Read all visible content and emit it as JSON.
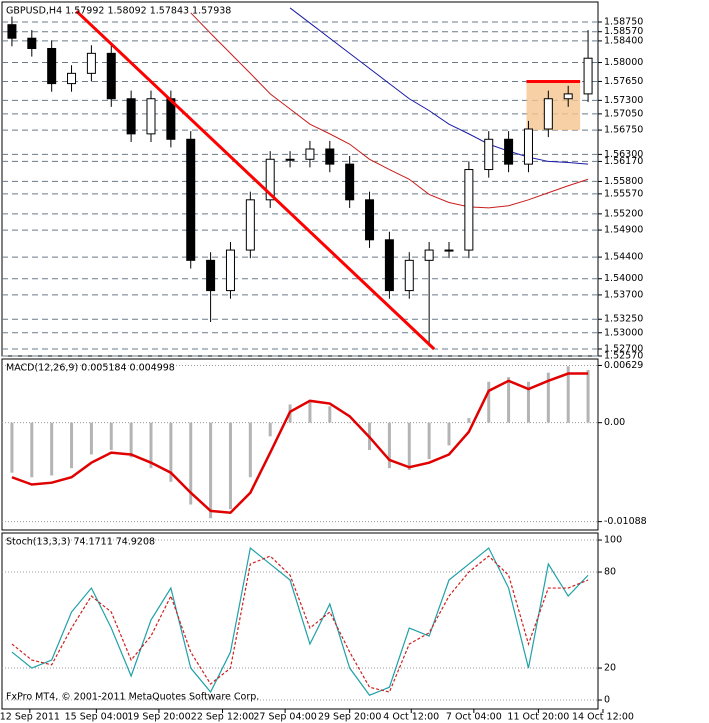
{
  "chart_data": [
    {
      "type": "candlestick",
      "title": "GBPUSD,H4  1.57992 1.58092 1.57843 1.57938",
      "xlim": [
        -0.5,
        29.5
      ],
      "ylim": [
        1.5257,
        1.5912
      ],
      "grid": true,
      "up_color": "#ffffff",
      "down_color": "#000000",
      "open": [
        1.587,
        1.5845,
        1.5826,
        1.5761,
        1.578,
        1.5817,
        1.5733,
        1.5668,
        1.5733,
        1.5658,
        1.5434,
        1.5378,
        1.5453,
        1.5546,
        1.5621,
        1.5621,
        1.564,
        1.5612,
        1.5546,
        1.5472,
        1.5378,
        1.5434,
        1.5453,
        1.5453,
        1.5602,
        1.5658,
        1.5612,
        1.5677,
        1.5733,
        1.5742
      ],
      "high": [
        1.5885,
        1.586,
        1.5841,
        1.5795,
        1.5832,
        1.5832,
        1.5748,
        1.5748,
        1.5748,
        1.5673,
        1.5449,
        1.5468,
        1.5561,
        1.5636,
        1.5636,
        1.5655,
        1.5655,
        1.5627,
        1.5561,
        1.5487,
        1.5449,
        1.5468,
        1.5468,
        1.5617,
        1.5673,
        1.5673,
        1.5692,
        1.5748,
        1.5757,
        1.586
      ],
      "low": [
        1.583,
        1.5811,
        1.5746,
        1.5746,
        1.5765,
        1.5718,
        1.5653,
        1.5653,
        1.5643,
        1.5419,
        1.532,
        1.5363,
        1.5438,
        1.5531,
        1.5606,
        1.5606,
        1.5597,
        1.5531,
        1.5457,
        1.5363,
        1.5363,
        1.5275,
        1.5438,
        1.5438,
        1.5587,
        1.5597,
        1.5597,
        1.5662,
        1.5718,
        1.5727
      ],
      "close": [
        1.5845,
        1.5826,
        1.5761,
        1.578,
        1.5817,
        1.5733,
        1.5668,
        1.5733,
        1.5658,
        1.5434,
        1.5378,
        1.5453,
        1.5546,
        1.5621,
        1.5621,
        1.564,
        1.5612,
        1.5546,
        1.5472,
        1.5378,
        1.5434,
        1.5453,
        1.5453,
        1.5602,
        1.5658,
        1.5612,
        1.5677,
        1.5733,
        1.5742,
        1.5808
      ],
      "lines": [
        {
          "color": "#1a1aa8",
          "values": [
            null,
            null,
            null,
            null,
            null,
            null,
            null,
            null,
            null,
            null,
            null,
            null,
            null,
            null,
            1.5901,
            1.5873,
            1.5845,
            1.5817,
            1.5789,
            1.5761,
            1.5733,
            1.5711,
            1.5686,
            1.5668,
            1.5649,
            1.5636,
            1.5625,
            1.5617,
            1.5615,
            1.5612
          ]
        },
        {
          "color": "#c81e1e",
          "values": [
            null,
            null,
            null,
            null,
            null,
            null,
            null,
            null,
            null,
            1.5892,
            1.5854,
            1.5817,
            1.578,
            1.5742,
            1.5714,
            1.5686,
            1.5668,
            1.5649,
            1.5621,
            1.5602,
            1.5584,
            1.5556,
            1.5541,
            1.5533,
            1.5531,
            1.5535,
            1.5546,
            1.5559,
            1.5572,
            1.5584
          ]
        }
      ],
      "annotations": [
        {
          "kind": "box",
          "color": "#f5c68f",
          "x": [
            25.9,
            28.6
          ],
          "y": [
            1.5765,
            1.5675
          ]
        },
        {
          "kind": "line",
          "color": "#ff0000",
          "x": [
            25.9,
            28.6
          ],
          "y": [
            1.5765,
            1.5765
          ]
        },
        {
          "kind": "line",
          "color": "#ff0000",
          "x": [
            3.25,
            21.25
          ],
          "y": [
            1.5895,
            1.527
          ]
        }
      ],
      "yticks": [
        {
          "value": 1.5875,
          "label": "1.58750"
        },
        {
          "value": 1.5857,
          "label": "1.58570"
        },
        {
          "value": 1.584,
          "label": "1.58400"
        },
        {
          "value": 1.58,
          "label": "1.58000"
        },
        {
          "value": 1.5765,
          "label": "1.57650"
        },
        {
          "value": 1.573,
          "label": "1.57300"
        },
        {
          "value": 1.5705,
          "label": "1.57050"
        },
        {
          "value": 1.5675,
          "label": "1.56750"
        },
        {
          "value": 1.563,
          "label": "1.56300"
        },
        {
          "value": 1.5617,
          "label": "1.56170"
        },
        {
          "value": 1.558,
          "label": "1.55800"
        },
        {
          "value": 1.5557,
          "label": "1.55570"
        },
        {
          "value": 1.552,
          "label": "1.55200"
        },
        {
          "value": 1.549,
          "label": "1.54900"
        },
        {
          "value": 1.544,
          "label": "1.54400"
        },
        {
          "value": 1.54,
          "label": "1.54000"
        },
        {
          "value": 1.537,
          "label": "1.53700"
        },
        {
          "value": 1.5325,
          "label": "1.53250"
        },
        {
          "value": 1.53,
          "label": "1.53000"
        },
        {
          "value": 1.527,
          "label": "1.52700"
        },
        {
          "value": 1.5257,
          "label": "1.52570"
        }
      ]
    },
    {
      "type": "macd",
      "title": "MACD(12,26,9) 0.005184 0.004998",
      "xlim": [
        -0.5,
        29.5
      ],
      "ylim": [
        -0.0118,
        0.007
      ],
      "color": "#b4b4b4",
      "values": [
        -0.0055,
        -0.006,
        -0.0058,
        -0.005,
        -0.0035,
        -0.003,
        -0.0038,
        -0.005,
        -0.0065,
        -0.009,
        -0.0105,
        -0.0095,
        -0.006,
        -0.0015,
        0.002,
        0.0025,
        0.0018,
        0.0,
        -0.003,
        -0.005,
        -0.0052,
        -0.004,
        -0.0025,
        0.0005,
        0.0045,
        0.005,
        0.0045,
        0.0055,
        0.0062,
        0.0058
      ],
      "lines": [
        {
          "color": "#e00000",
          "values": [
            -0.006,
            -0.0068,
            -0.0066,
            -0.006,
            -0.0044,
            -0.0033,
            -0.0035,
            -0.0044,
            -0.0055,
            -0.0077,
            -0.0097,
            -0.0099,
            -0.0077,
            -0.0033,
            0.0012,
            0.0024,
            0.0021,
            0.0007,
            -0.0016,
            -0.0041,
            -0.0049,
            -0.0044,
            -0.0035,
            -0.001,
            0.0035,
            0.0046,
            0.0037,
            0.0046,
            0.0054,
            0.0054
          ]
        }
      ],
      "yticks": [
        0.00629,
        {
          "value": 0,
          "label": "0.00"
        },
        -0.01088
      ]
    },
    {
      "type": "line",
      "title": "Stoch(13,3,3) 74.1711 74.9208",
      "xlim": [
        -0.5,
        29.5
      ],
      "ylim": [
        -5.6,
        104.4
      ],
      "series": [
        {
          "color": "#20a0a8",
          "dashed": false,
          "values": [
            30,
            20,
            25,
            55,
            70,
            45,
            15,
            50,
            70,
            20,
            5,
            30,
            95,
            85,
            75,
            35,
            60,
            20,
            3,
            8,
            45,
            40,
            75,
            85,
            95,
            70,
            20,
            85,
            65,
            78
          ]
        },
        {
          "color": "#d02020",
          "dashed": true,
          "values": [
            35,
            25,
            22,
            45,
            65,
            55,
            25,
            40,
            65,
            30,
            10,
            20,
            85,
            90,
            78,
            45,
            55,
            30,
            8,
            5,
            35,
            42,
            65,
            80,
            90,
            78,
            35,
            70,
            70,
            75
          ]
        }
      ],
      "yticks": [
        100,
        80,
        20,
        0
      ],
      "xticks": [
        {
          "value": 0.9,
          "label": "12 Sep 2011"
        },
        {
          "value": 4.25,
          "label": "15 Sep 04:00"
        },
        {
          "value": 7.4,
          "label": "19 Sep 20:00"
        },
        {
          "value": 10.6,
          "label": "22 Sep 12:00"
        },
        {
          "value": 13.75,
          "label": "27 Sep 04:00"
        },
        {
          "value": 17,
          "label": "29 Sep 20:00"
        },
        {
          "value": 20.1,
          "label": "4 Oct 12:00"
        },
        {
          "value": 23.25,
          "label": "7 Oct 04:00"
        },
        {
          "value": 26.5,
          "label": "11 Oct 20:00"
        },
        {
          "value": 29.75,
          "label": "14 Oct 12:00"
        }
      ]
    }
  ],
  "footer": "FxPro MT4, © 2001-2011 MetaQuotes Software Corp."
}
